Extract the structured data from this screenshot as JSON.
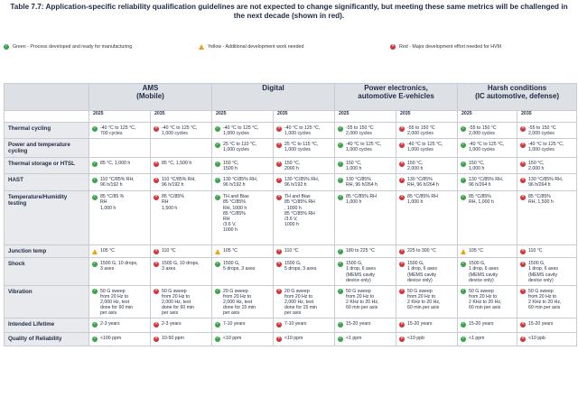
{
  "caption": "Table 7.7: Application-specific reliability qualification guidelines are not expected to change significantly, but meeting these same metrics will be challenged in the next decade (shown in red).",
  "legend": [
    {
      "status": "green",
      "icon": "check-circle-icon",
      "label": "Green - Process developed and ready for manufacturing"
    },
    {
      "status": "yellow",
      "icon": "warning-triangle-icon",
      "label": "Yellow - Additional development work needed"
    },
    {
      "status": "red",
      "icon": "x-circle-icon",
      "label": "Red - Major development effort needed for HVM"
    }
  ],
  "colors": {
    "green": "#3aa34a",
    "yellow": "#f2a01c",
    "red": "#d2343a",
    "header_bg": "#dde0e4"
  },
  "groups": [
    "AMS\n(Mobile)",
    "Digital",
    "Power electronics,\nautomotive E-vehicles",
    "Harsh conditions\n(IC automotive, defense)"
  ],
  "years": [
    "2025",
    "2035",
    "2025",
    "2035",
    "2025",
    "2035",
    "2025",
    "2035"
  ],
  "rows": [
    {
      "metric": "Thermal cycling",
      "cells": [
        {
          "s": "g",
          "t": "-40 °C to 125 °C,\n700 cycles"
        },
        {
          "s": "r",
          "t": "-40 °C to 125 °C,\n1,000 cycles"
        },
        {
          "s": "g",
          "t": "-40 °C to 125 °C,\n1,000 cycles"
        },
        {
          "s": "r",
          "t": "-40 °C to 125 °C,\n1,000 cycles"
        },
        {
          "s": "g",
          "t": "-55 to 150 °C\n2,000 cycles"
        },
        {
          "s": "r",
          "t": "-55 to 150 °C\n2,000 cycles"
        },
        {
          "s": "g",
          "t": "-55 to 150 °C\n2,000 cycles"
        },
        {
          "s": "r",
          "t": "-55 to 150 °C\n2,000 cycles"
        }
      ]
    },
    {
      "metric": "Power and temperature cycling",
      "cells": [
        null,
        null,
        {
          "s": "g",
          "t": "25 °C to 110 °C,\n1,000 cycles"
        },
        {
          "s": "r",
          "t": "25 °C to 115 °C,\n1,000 cycles"
        },
        {
          "s": "g",
          "t": "-40 °C to 125 °C,\n1,000 cycles"
        },
        {
          "s": "r",
          "t": "-40 °C to 125 °C,\n1,000 cycles"
        },
        {
          "s": "g",
          "t": "-40 °C to 125 °C,\n1,000 cycles"
        },
        {
          "s": "r",
          "t": "-40 °C to 125 °C,\n1,000 cycles"
        }
      ]
    },
    {
      "metric": "Thermal storage or HTSL",
      "cells": [
        {
          "s": "g",
          "t": "85 °C, 1,000 h"
        },
        {
          "s": "r",
          "t": "85 °C, 1,500 h"
        },
        {
          "s": "g",
          "t": "150 °C,\n1500 h"
        },
        {
          "s": "r",
          "t": "150 °C,\n2000 h"
        },
        {
          "s": "g",
          "t": "150 °C,\n1,000 h"
        },
        {
          "s": "r",
          "t": "150 °C,\n2,000 h"
        },
        {
          "s": "g",
          "t": "150 °C,\n1,000 h"
        },
        {
          "s": "r",
          "t": "150 °C,\n2,000 h"
        }
      ]
    },
    {
      "metric": "HAST",
      "cells": [
        {
          "s": "g",
          "t": "110 °C/85% RH,\n96 h/192 h"
        },
        {
          "s": "r",
          "t": "110 °C/85% RH,\n96 h/192 h"
        },
        {
          "s": "g",
          "t": "130 °C/85% RH,\n96 h/192 h"
        },
        {
          "s": "r",
          "t": "130 °C/85% RH,\n96 h/192 h"
        },
        {
          "s": "g",
          "t": "130 °C/85%\nRH, 96 h/264 h"
        },
        {
          "s": "r",
          "t": "130 °C/85%\nRH, 96 h/264 h"
        },
        {
          "s": "g",
          "t": "130 °C/85% RH,\n96 h/264 h"
        },
        {
          "s": "r",
          "t": "130 °C/85% RH,\n96 h/264 h"
        }
      ]
    },
    {
      "metric": "Temperature/Humidity testing",
      "cells": [
        {
          "s": "g",
          "t": "85 °C/85 %\nRH\n1,000 h"
        },
        {
          "s": "r",
          "t": "85 °C/85%\nRH\n1,500 h"
        },
        {
          "s": "g",
          "t": "TH and Bias\n85 °C/85%\nRH, 1000 h\n85 °C/85%\nRH\n/3.6 V,\n1000 h"
        },
        {
          "s": "r",
          "t": "TH and Bias\n85 °C/85% RH\n, 1000 h\n85 °C/85% RH\n/3.6 V,\n1000 h"
        },
        {
          "s": "g",
          "t": "85 °C/85% RH\n1,000 h"
        },
        {
          "s": "r",
          "t": "85 °C/85% RH\n1,000 h"
        },
        {
          "s": "g",
          "t": "85 °C/85%\nRH, 1,000 h"
        },
        {
          "s": "r",
          "t": "85 °C/85%\nRH, 1,500 h"
        }
      ]
    },
    {
      "metric": "Junction temp",
      "cells": [
        {
          "s": "y",
          "t": "105 °C"
        },
        {
          "s": "r",
          "t": "110 °C"
        },
        {
          "s": "y",
          "t": "105 °C"
        },
        {
          "s": "r",
          "t": "110 °C"
        },
        {
          "s": "g",
          "t": "180 to 225 °C"
        },
        {
          "s": "r",
          "t": "225 to 300 °C"
        },
        {
          "s": "y",
          "t": "105 °C"
        },
        {
          "s": "r",
          "t": "110 °C"
        }
      ]
    },
    {
      "metric": "Shock",
      "cells": [
        {
          "s": "g",
          "t": "1500 G, 10 drops,\n3 axes"
        },
        {
          "s": "r",
          "t": "1500 G, 10 drops,\n3 axes"
        },
        {
          "s": "g",
          "t": "1500 G,\n5 drops, 3 axes"
        },
        {
          "s": "r",
          "t": "1500 G,\n5 drops, 3 axes"
        },
        {
          "s": "g",
          "t": "1500 G,\n1 drop, 6 axes\n(MEMS cavity\ndevice only)"
        },
        {
          "s": "r",
          "t": "1500 G,\n1 drop, 6 axes\n(MEMS cavity\ndevice only)"
        },
        {
          "s": "g",
          "t": "1500 G,\n1 drop, 6 axes\n(MEMS cavity\ndevice only)"
        },
        {
          "s": "r",
          "t": "1500 G,\n1 drop, 6 axes\n(MEMS cavity\ndevice only)"
        }
      ]
    },
    {
      "metric": "Vibration",
      "cells": [
        {
          "s": "g",
          "t": "50 G sweep\nfrom 20 Hz to\n2,000 Hz, test\ndone for 60 min\nper axis"
        },
        {
          "s": "r",
          "t": "50 G sweep\nfrom 20 Hz to\n2,000 Hz, test\ndone for 60 min\nper axis"
        },
        {
          "s": "g",
          "t": "20 G sweep\nfrom 20 Hz to\n2,000 Hz, test\ndone for 15 min\nper axis"
        },
        {
          "s": "r",
          "t": "20 G sweep\nfrom 20 Hz to\n2,000 Hz, test\ndone for 15 min\nper axis"
        },
        {
          "s": "g",
          "t": "50 G sweep\nfrom 20 Hz to\n2 KHz to 20 Hz,\n60 min per axis"
        },
        {
          "s": "r",
          "t": "50 G sweep\nfrom 20 Hz to\n2 KHz to 20 Hz,\n60 min per axis"
        },
        {
          "s": "g",
          "t": "50 G sweep\nfrom 20 Hz to\n2 KHz to 20 Hz,\n60 min per axis"
        },
        {
          "s": "r",
          "t": "50 G sweep\nfrom 20 Hz to\n2 KHz to 20 Hz,\n60 min per axis"
        }
      ]
    },
    {
      "metric": "Intended Lifetime",
      "cells": [
        {
          "s": "g",
          "t": "2-3 years"
        },
        {
          "s": "r",
          "t": "2-3 years"
        },
        {
          "s": "g",
          "t": "7-10 years"
        },
        {
          "s": "r",
          "t": "7-10 years"
        },
        {
          "s": "g",
          "t": "15-20 years"
        },
        {
          "s": "r",
          "t": "15-20 years"
        },
        {
          "s": "g",
          "t": "15-20 years"
        },
        {
          "s": "r",
          "t": "15-20 years"
        }
      ]
    },
    {
      "metric": "Quality of Reliability",
      "cells": [
        {
          "s": "g",
          "t": "<100 ppm"
        },
        {
          "s": "r",
          "t": "10-50 ppm"
        },
        {
          "s": "g",
          "t": "<10 ppm"
        },
        {
          "s": "r",
          "t": "<10 ppm"
        },
        {
          "s": "g",
          "t": "<1 ppm"
        },
        {
          "s": "r",
          "t": "<10 ppb"
        },
        {
          "s": "g",
          "t": "<1 ppm"
        },
        {
          "s": "r",
          "t": "<10 ppb"
        }
      ]
    }
  ]
}
